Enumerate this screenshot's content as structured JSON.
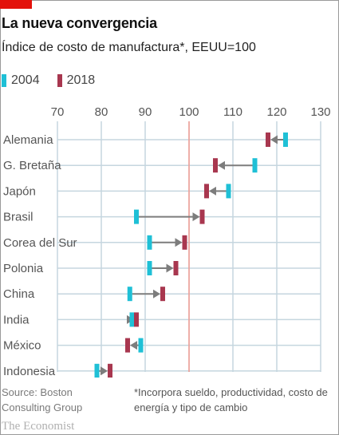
{
  "header": {
    "title": "La nueva convergencia",
    "subtitle": "Índice de costo de manufactura*, EEUU=100"
  },
  "legend": {
    "series_2004": "2004",
    "series_2018": "2018"
  },
  "colors": {
    "series_2004": "#1fc0d6",
    "series_2018": "#a8374f",
    "arrow": "#7d7d7d",
    "reference_line": "#f29b92",
    "grid": "#c5d6df",
    "brand_tag": "#e3120b"
  },
  "chart_data": {
    "type": "dot-arrow",
    "title": "La nueva convergencia",
    "subtitle": "Índice de costo de manufactura*, EEUU=100",
    "categories": [
      "Alemania",
      "G. Bretaña",
      "Japón",
      "Brasil",
      "Corea del Sur",
      "Polonia",
      "China",
      "India",
      "México",
      "Indonesia"
    ],
    "series": [
      {
        "name": "2004",
        "values": [
          122,
          115,
          109,
          88,
          91,
          91,
          86.5,
          87,
          89,
          79
        ]
      },
      {
        "name": "2018",
        "values": [
          118,
          106,
          104,
          103,
          99,
          97,
          94,
          88,
          86,
          82
        ]
      }
    ],
    "x_ticks": [
      70,
      80,
      90,
      100,
      110,
      120,
      130
    ],
    "xlim": [
      70,
      130
    ],
    "reference_value": 100,
    "axis_position": "top",
    "grid": true,
    "legend_position": "top-left"
  },
  "footer": {
    "source": "Source: Boston Consulting Group",
    "footnote": "*Incorpora sueldo, productividad, costo de energía y tipo de cambio",
    "brand": "The Economist"
  }
}
